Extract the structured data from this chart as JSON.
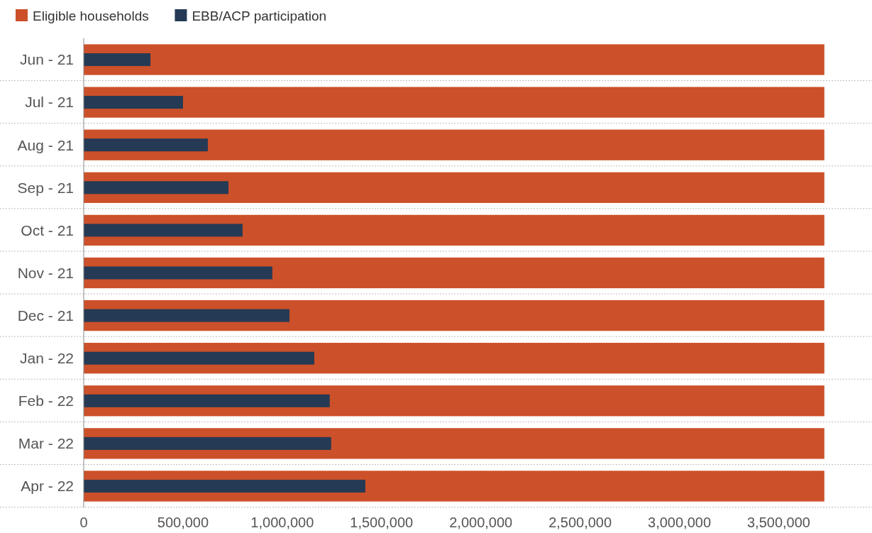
{
  "chart_data": {
    "type": "bar",
    "orientation": "horizontal",
    "categories": [
      "Jun - 21",
      "Jul - 21",
      "Aug - 21",
      "Sep - 21",
      "Oct - 21",
      "Nov - 21",
      "Dec - 21",
      "Jan - 22",
      "Feb - 22",
      "Mar - 22",
      "Apr - 22"
    ],
    "series": [
      {
        "name": "Eligible households",
        "color": "#cc5029",
        "values": [
          3730000,
          3730000,
          3730000,
          3730000,
          3730000,
          3730000,
          3730000,
          3730000,
          3730000,
          3730000,
          3730000
        ]
      },
      {
        "name": "EBB/ACP participation",
        "color": "#253a54",
        "values": [
          336000,
          500000,
          625000,
          729000,
          800000,
          950000,
          1036000,
          1161000,
          1239000,
          1246000,
          1418000
        ]
      }
    ],
    "xlim": [
      0,
      3970000
    ],
    "xticks": [
      {
        "value": 0,
        "label": "0"
      },
      {
        "value": 500000,
        "label": "500,000"
      },
      {
        "value": 1000000,
        "label": "1,000,000"
      },
      {
        "value": 1500000,
        "label": "1,500,000"
      },
      {
        "value": 2000000,
        "label": "2,000,000"
      },
      {
        "value": 2500000,
        "label": "2,500,000"
      },
      {
        "value": 3000000,
        "label": "3,000,000"
      },
      {
        "value": 3500000,
        "label": "3,500,000"
      }
    ],
    "grid": "y",
    "legend": "top left"
  }
}
